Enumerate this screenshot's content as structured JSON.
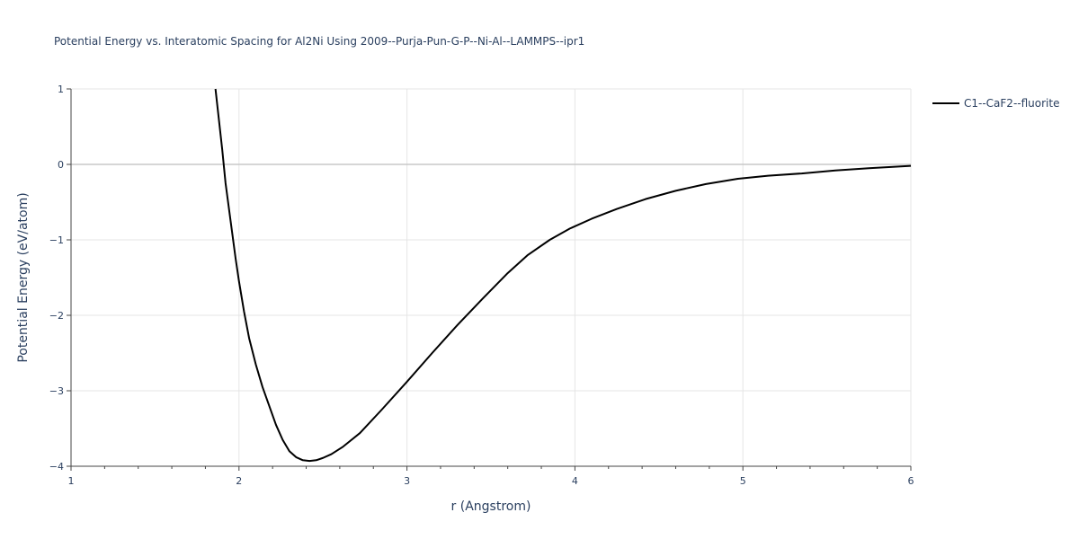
{
  "chart_data": {
    "type": "line",
    "title": "Potential Energy vs. Interatomic Spacing for Al2Ni Using 2009--Purja-Pun-G-P--Ni-Al--LAMMPS--ipr1",
    "xlabel": "r (Angstrom)",
    "ylabel": "Potential Energy (eV/atom)",
    "xlim": [
      1,
      6
    ],
    "ylim": [
      -4,
      1
    ],
    "x_ticks": [
      "1",
      "2",
      "3",
      "4",
      "5",
      "6"
    ],
    "y_ticks": [
      "1",
      "0",
      "−1",
      "−2",
      "−3",
      "−4"
    ],
    "grid": true,
    "legend_position": "top-right",
    "series": [
      {
        "name": "C1--CaF2--fluorite",
        "color": "#000000",
        "x": [
          1.86,
          1.88,
          1.9,
          1.92,
          1.95,
          1.98,
          2.0,
          2.03,
          2.06,
          2.1,
          2.14,
          2.18,
          2.22,
          2.26,
          2.3,
          2.34,
          2.38,
          2.42,
          2.46,
          2.5,
          2.55,
          2.62,
          2.72,
          2.85,
          3.0,
          3.15,
          3.3,
          3.45,
          3.6,
          3.72,
          3.85,
          3.97,
          4.1,
          4.25,
          4.42,
          4.6,
          4.78,
          4.97,
          5.15,
          5.35,
          5.55,
          5.75,
          6.0
        ],
        "y": [
          1.0,
          0.6,
          0.2,
          -0.25,
          -0.75,
          -1.25,
          -1.55,
          -1.95,
          -2.3,
          -2.65,
          -2.95,
          -3.2,
          -3.45,
          -3.65,
          -3.8,
          -3.88,
          -3.92,
          -3.93,
          -3.92,
          -3.89,
          -3.84,
          -3.74,
          -3.56,
          -3.25,
          -2.88,
          -2.5,
          -2.13,
          -1.78,
          -1.44,
          -1.2,
          -1.0,
          -0.85,
          -0.72,
          -0.59,
          -0.46,
          -0.35,
          -0.26,
          -0.19,
          -0.15,
          -0.12,
          -0.08,
          -0.05,
          -0.02
        ]
      }
    ]
  }
}
